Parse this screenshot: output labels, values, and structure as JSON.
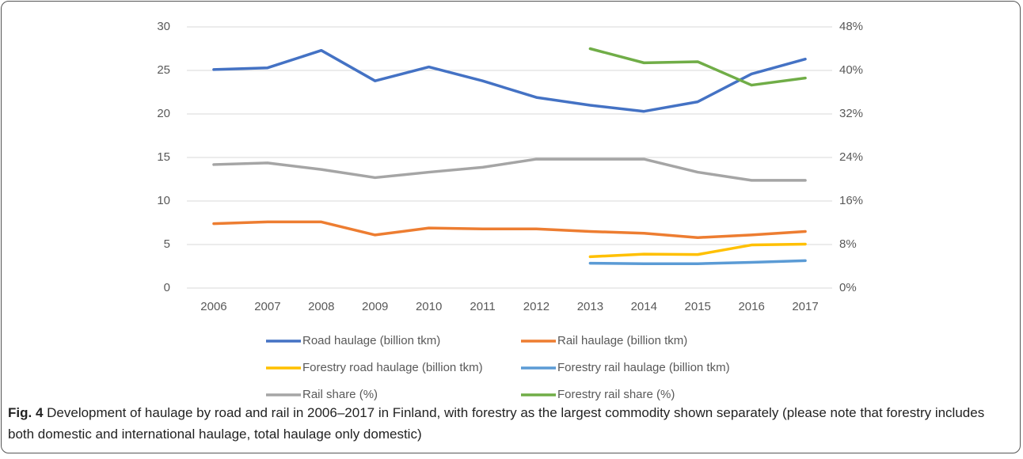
{
  "chart_data": {
    "type": "line",
    "categories": [
      "2006",
      "2007",
      "2008",
      "2009",
      "2010",
      "2011",
      "2012",
      "2013",
      "2014",
      "2015",
      "2016",
      "2017"
    ],
    "series": [
      {
        "name": "Road haulage (billion tkm)",
        "color": "#4472c4",
        "values": [
          25.1,
          25.3,
          27.3,
          23.8,
          25.4,
          23.8,
          21.9,
          21.0,
          20.3,
          21.4,
          24.6,
          26.3
        ]
      },
      {
        "name": "Rail haulage (billion tkm)",
        "color": "#ed7d31",
        "values": [
          7.4,
          7.6,
          7.6,
          6.1,
          6.9,
          6.8,
          6.8,
          6.5,
          6.3,
          5.8,
          6.1,
          6.5
        ]
      },
      {
        "name": "Forestry road haulage (billion tkm)",
        "color": "#ffc000",
        "values": [
          null,
          null,
          null,
          null,
          null,
          null,
          null,
          3.6,
          3.9,
          3.85,
          4.95,
          5.05
        ]
      },
      {
        "name": "Forestry rail haulage (billion tkm)",
        "color": "#5b9bd5",
        "values": [
          null,
          null,
          null,
          null,
          null,
          null,
          null,
          2.85,
          2.8,
          2.8,
          2.95,
          3.15
        ]
      },
      {
        "name": "Rail share (%)",
        "color": "#a5a5a5",
        "axis": "y2",
        "values": [
          22.7,
          23.0,
          21.8,
          20.3,
          21.3,
          22.2,
          23.7,
          23.7,
          23.7,
          21.3,
          19.8,
          19.8
        ]
      },
      {
        "name": "Forestry rail share (%)",
        "color": "#70ad47",
        "axis": "y2",
        "values": [
          null,
          null,
          null,
          null,
          null,
          null,
          null,
          44.0,
          41.4,
          41.6,
          37.3,
          38.6
        ]
      }
    ],
    "ylim": [
      0,
      30
    ],
    "yticks": [
      0,
      5,
      10,
      15,
      20,
      25,
      30
    ],
    "y2lim": [
      0,
      48
    ],
    "y2ticks": [
      {
        "value": 0,
        "label": "0%"
      },
      {
        "value": 8,
        "label": "8%"
      },
      {
        "value": 16,
        "label": "16%"
      },
      {
        "value": 24,
        "label": "24%"
      },
      {
        "value": 32,
        "label": "32%"
      },
      {
        "value": 40,
        "label": "40%"
      },
      {
        "value": 48,
        "label": "48%"
      }
    ],
    "grid": true,
    "legend": "bottom",
    "caption_label": "Fig. 4",
    "caption": "Development of haulage by road and rail in 2006–2017 in Finland, with forestry as the largest commodity shown separately (please note that forestry includes both domestic and international haulage, total haulage only domestic)"
  }
}
